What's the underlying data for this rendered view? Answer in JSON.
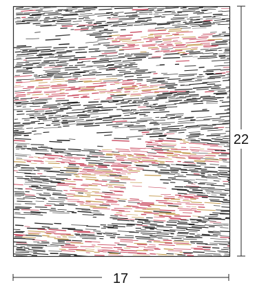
{
  "artwork": {
    "palette": {
      "black": "#1e1e1e",
      "charcoal": "#3a3a3a",
      "grey": "#7a7a7a",
      "red": "#c8485e",
      "rose": "#d9707e",
      "ochre": "#c9a35c",
      "paper": "#ffffff"
    }
  },
  "dimensions": {
    "width_label": "17",
    "height_label": "22"
  }
}
